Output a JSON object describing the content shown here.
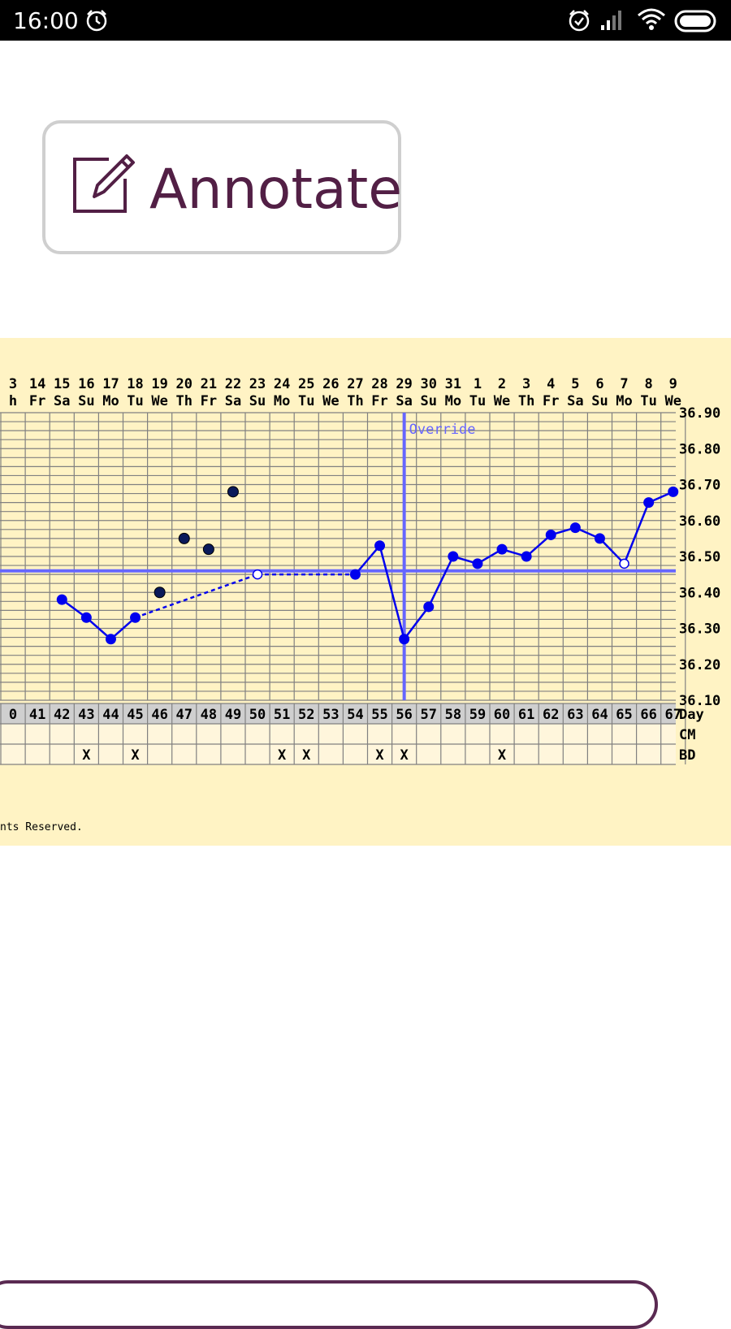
{
  "status_bar": {
    "time": "16:00",
    "icons": [
      "alarm-icon",
      "alarm-icon",
      "signal-icon",
      "wifi-icon",
      "battery-icon"
    ]
  },
  "annotate_button": {
    "label": "Annotate",
    "icon": "edit-icon",
    "color": "#521f45"
  },
  "chart": {
    "background": "#fff3c4",
    "line_color": "#0000ee",
    "override_color": "#6666ff",
    "override_label": "Override",
    "copyright_fragment": "nts Reserved.",
    "row_labels": {
      "day": "Day",
      "cm": "CM",
      "bd": "BD"
    }
  },
  "chart_data": {
    "type": "line",
    "dates": [
      "3",
      "14",
      "15",
      "16",
      "17",
      "18",
      "19",
      "20",
      "21",
      "22",
      "23",
      "24",
      "25",
      "26",
      "27",
      "28",
      "29",
      "30",
      "31",
      "1",
      "2",
      "3",
      "4",
      "5",
      "6",
      "7",
      "8",
      "9"
    ],
    "weekdays": [
      "h",
      "Fr",
      "Sa",
      "Su",
      "Mo",
      "Tu",
      "We",
      "Th",
      "Fr",
      "Sa",
      "Su",
      "Mo",
      "Tu",
      "We",
      "Th",
      "Fr",
      "Sa",
      "Su",
      "Mo",
      "Tu",
      "We",
      "Th",
      "Fr",
      "Sa",
      "Su",
      "Mo",
      "Tu",
      "We"
    ],
    "days": [
      "0",
      "41",
      "42",
      "43",
      "44",
      "45",
      "46",
      "47",
      "48",
      "49",
      "50",
      "51",
      "52",
      "53",
      "54",
      "55",
      "56",
      "57",
      "58",
      "59",
      "60",
      "61",
      "62",
      "63",
      "64",
      "65",
      "66",
      "67"
    ],
    "bd_marks": [
      "43",
      "45",
      "51",
      "52",
      "55",
      "56",
      "60"
    ],
    "y_ticks": [
      "36.90",
      "36.80",
      "36.70",
      "36.60",
      "36.50",
      "36.40",
      "36.30",
      "36.20",
      "36.10"
    ],
    "ylim": [
      36.1,
      36.9
    ],
    "coverline": 36.46,
    "override_day": "56",
    "series": [
      {
        "day": "42",
        "temp": 36.38,
        "kind": "line"
      },
      {
        "day": "43",
        "temp": 36.33,
        "kind": "line"
      },
      {
        "day": "44",
        "temp": 36.27,
        "kind": "line"
      },
      {
        "day": "45",
        "temp": 36.33,
        "kind": "line"
      },
      {
        "day": "50",
        "temp": 36.45,
        "kind": "open"
      },
      {
        "day": "54",
        "temp": 36.45,
        "kind": "line"
      },
      {
        "day": "55",
        "temp": 36.53,
        "kind": "line"
      },
      {
        "day": "56",
        "temp": 36.27,
        "kind": "line"
      },
      {
        "day": "57",
        "temp": 36.36,
        "kind": "line"
      },
      {
        "day": "58",
        "temp": 36.5,
        "kind": "line"
      },
      {
        "day": "59",
        "temp": 36.48,
        "kind": "line"
      },
      {
        "day": "60",
        "temp": 36.52,
        "kind": "line"
      },
      {
        "day": "61",
        "temp": 36.5,
        "kind": "line"
      },
      {
        "day": "62",
        "temp": 36.56,
        "kind": "line"
      },
      {
        "day": "63",
        "temp": 36.58,
        "kind": "line"
      },
      {
        "day": "64",
        "temp": 36.55,
        "kind": "line"
      },
      {
        "day": "65",
        "temp": 36.48,
        "kind": "open"
      },
      {
        "day": "66",
        "temp": 36.65,
        "kind": "line"
      },
      {
        "day": "67",
        "temp": 36.68,
        "kind": "line"
      }
    ],
    "excluded": [
      {
        "day": "46",
        "temp": 36.4
      },
      {
        "day": "47",
        "temp": 36.55
      },
      {
        "day": "48",
        "temp": 36.52
      },
      {
        "day": "49",
        "temp": 36.68
      }
    ]
  }
}
